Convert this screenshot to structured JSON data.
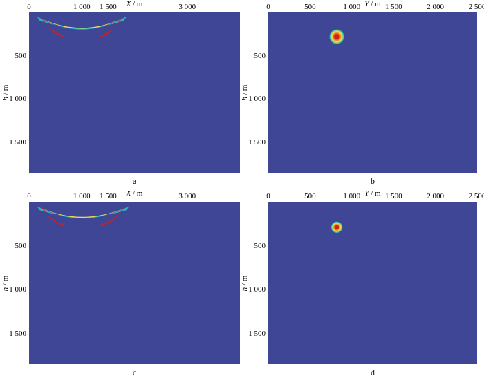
{
  "chart_data": [
    {
      "type": "heatmap",
      "panel_label": "a",
      "xlabel_var": "X",
      "xlabel_unit": " / m",
      "ylabel_var": "h",
      "ylabel_unit": " / m",
      "xlim": [
        0,
        4000
      ],
      "ylim": [
        0,
        1850
      ],
      "x_ticks": [
        {
          "value": 0,
          "label": "0"
        },
        {
          "value": 1000,
          "label": "1 000"
        },
        {
          "value": 1500,
          "label": "1 500"
        },
        {
          "value": 3000,
          "label": "3 000"
        }
      ],
      "y_ticks": [
        {
          "value": 500,
          "label": "500"
        },
        {
          "value": 1000,
          "label": "1 000"
        },
        {
          "value": 1500,
          "label": "1 500"
        }
      ],
      "anomaly": {
        "shape": "arc",
        "x_start": 150,
        "x_end": 1850,
        "x_center": 1000,
        "h_edge": 80,
        "h_center": 250,
        "thickness": 60
      }
    },
    {
      "type": "heatmap",
      "panel_label": "b",
      "xlabel_var": "Y",
      "xlabel_unit": " / m",
      "ylabel_var": "h",
      "ylabel_unit": " / m",
      "xlim": [
        0,
        2500
      ],
      "ylim": [
        0,
        1850
      ],
      "x_ticks": [
        {
          "value": 0,
          "label": "0"
        },
        {
          "value": 500,
          "label": "500"
        },
        {
          "value": 1000,
          "label": "1 000"
        },
        {
          "value": 1500,
          "label": "1 500"
        },
        {
          "value": 2000,
          "label": "2 000"
        },
        {
          "value": 2500,
          "label": "2 500"
        }
      ],
      "y_ticks": [
        {
          "value": 500,
          "label": "500"
        },
        {
          "value": 1000,
          "label": "1 000"
        },
        {
          "value": 1500,
          "label": "1 500"
        }
      ],
      "anomaly": {
        "shape": "spot",
        "x_center": 820,
        "h_center": 280,
        "radius": 90
      }
    },
    {
      "type": "heatmap",
      "panel_label": "c",
      "xlabel_var": "X",
      "xlabel_unit": " / m",
      "ylabel_var": "h",
      "ylabel_unit": " / m",
      "xlim": [
        0,
        4000
      ],
      "ylim": [
        0,
        1850
      ],
      "x_ticks": [
        {
          "value": 0,
          "label": "0"
        },
        {
          "value": 1000,
          "label": "1 000"
        },
        {
          "value": 1500,
          "label": "1 500"
        },
        {
          "value": 3000,
          "label": "3 000"
        }
      ],
      "y_ticks": [
        {
          "value": 500,
          "label": "500"
        },
        {
          "value": 1000,
          "label": "1 000"
        },
        {
          "value": 1500,
          "label": "1 500"
        }
      ],
      "anomaly": {
        "shape": "arc",
        "x_start": 150,
        "x_end": 1900,
        "x_center": 1000,
        "h_edge": 80,
        "h_center": 240,
        "thickness": 55
      }
    },
    {
      "type": "heatmap",
      "panel_label": "d",
      "xlabel_var": "Y",
      "xlabel_unit": " / m",
      "ylabel_var": "h",
      "ylabel_unit": " / m",
      "xlim": [
        0,
        2500
      ],
      "ylim": [
        0,
        1850
      ],
      "x_ticks": [
        {
          "value": 0,
          "label": "0"
        },
        {
          "value": 500,
          "label": "500"
        },
        {
          "value": 1000,
          "label": "1 000"
        },
        {
          "value": 1500,
          "label": "1 500"
        },
        {
          "value": 2000,
          "label": "2 000"
        },
        {
          "value": 2500,
          "label": "2 500"
        }
      ],
      "y_ticks": [
        {
          "value": 500,
          "label": "500"
        },
        {
          "value": 1000,
          "label": "1 000"
        },
        {
          "value": 1500,
          "label": "1 500"
        }
      ],
      "anomaly": {
        "shape": "spot",
        "x_center": 820,
        "h_center": 290,
        "radius": 70
      }
    }
  ],
  "colors": {
    "background": "#3f4696",
    "ramp": [
      "#3f4696",
      "#2bb5c8",
      "#7fd36a",
      "#f2e34a",
      "#f08a2a",
      "#d21f1f"
    ]
  }
}
